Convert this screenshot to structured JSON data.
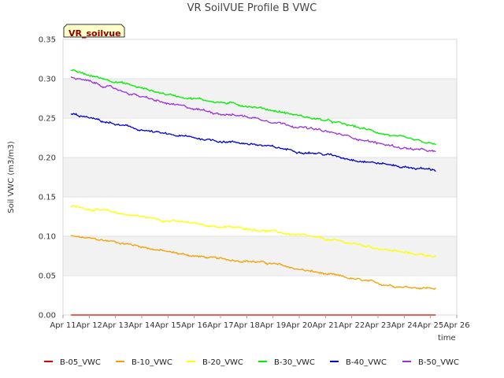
{
  "title": "VR SoilVUE Profile B VWC",
  "badge": "VR_soilvue",
  "chart_data": {
    "type": "line",
    "title": "VR SoilVUE Profile B VWC",
    "xlabel": "time",
    "ylabel": "Soil VWC (m3/m3)",
    "x_ticks": [
      "Apr 11",
      "Apr 12",
      "Apr 13",
      "Apr 14",
      "Apr 15",
      "Apr 16",
      "Apr 17",
      "Apr 18",
      "Apr 19",
      "Apr 20",
      "Apr 21",
      "Apr 22",
      "Apr 23",
      "Apr 24",
      "Apr 25",
      "Apr 26"
    ],
    "y_ticks": [
      "0.00",
      "0.05",
      "0.10",
      "0.15",
      "0.20",
      "0.25",
      "0.30",
      "0.35"
    ],
    "xlim": [
      11,
      26
    ],
    "ylim": [
      0,
      0.35
    ],
    "grid": true,
    "legend_position": "bottom",
    "x_days": [
      11.3,
      12,
      13,
      14,
      15,
      16,
      17,
      18,
      19,
      20,
      21,
      22,
      23,
      24,
      25.2
    ],
    "series": [
      {
        "name": "B-05_VWC",
        "color": "#dd0000",
        "values": [
          0.0,
          0.0,
          0.0,
          0.0,
          0.0,
          0.0,
          0.0,
          0.0,
          0.0,
          0.0,
          0.0,
          0.0,
          0.0,
          0.0,
          0.0
        ]
      },
      {
        "name": "B-10_VWC",
        "color": "#f5a000",
        "values": [
          0.1,
          0.097,
          0.093,
          0.087,
          0.08,
          0.075,
          0.071,
          0.069,
          0.065,
          0.058,
          0.052,
          0.046,
          0.04,
          0.036,
          0.034
        ]
      },
      {
        "name": "B-20_VWC",
        "color": "#ffff00",
        "values": [
          0.138,
          0.135,
          0.13,
          0.125,
          0.12,
          0.116,
          0.112,
          0.11,
          0.106,
          0.101,
          0.096,
          0.091,
          0.085,
          0.079,
          0.075
        ]
      },
      {
        "name": "B-30_VWC",
        "color": "#00ee00",
        "values": [
          0.31,
          0.304,
          0.297,
          0.288,
          0.28,
          0.275,
          0.27,
          0.266,
          0.26,
          0.253,
          0.247,
          0.24,
          0.232,
          0.224,
          0.216
        ]
      },
      {
        "name": "B-40_VWC",
        "color": "#0000cc",
        "values": [
          0.255,
          0.25,
          0.242,
          0.235,
          0.229,
          0.225,
          0.221,
          0.218,
          0.213,
          0.208,
          0.204,
          0.198,
          0.193,
          0.188,
          0.184
        ]
      },
      {
        "name": "B-50_VWC",
        "color": "#9b30d9",
        "values": [
          0.302,
          0.296,
          0.287,
          0.277,
          0.268,
          0.262,
          0.256,
          0.252,
          0.246,
          0.239,
          0.233,
          0.226,
          0.218,
          0.212,
          0.207
        ]
      }
    ]
  }
}
